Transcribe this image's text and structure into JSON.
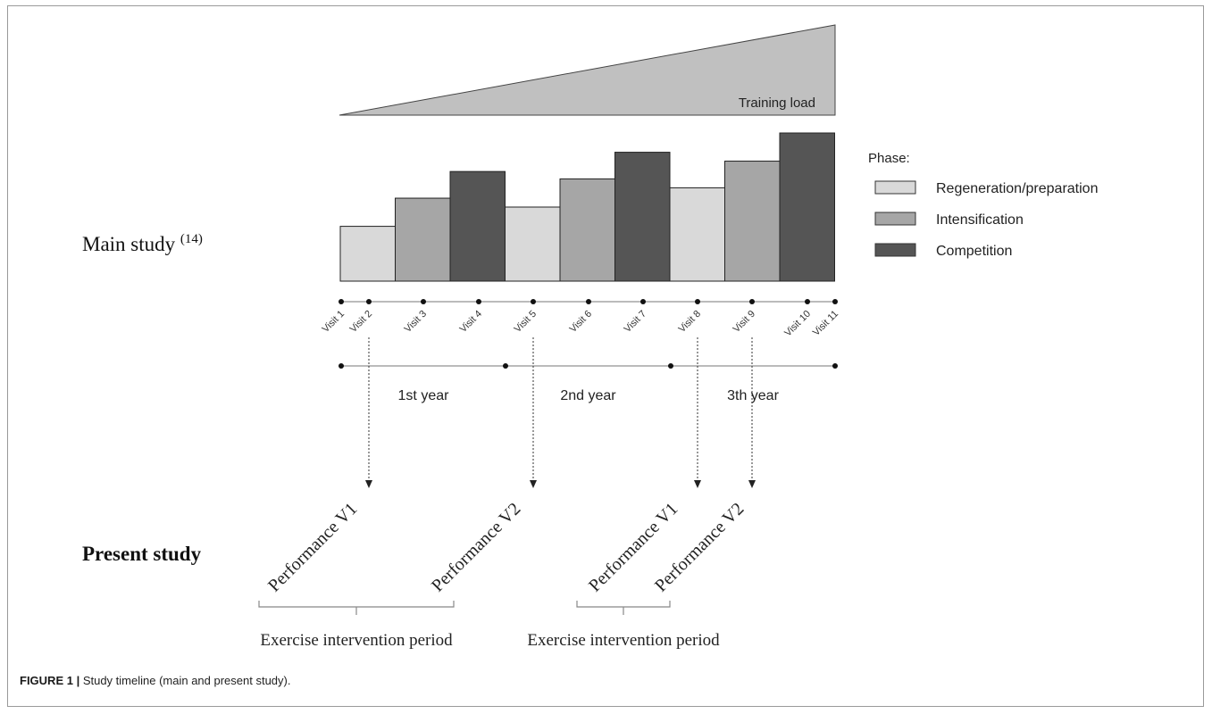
{
  "training_load": {
    "label": "Training load",
    "fill": "#c0c0c0",
    "level_start": 0,
    "level_end": 1
  },
  "main_study": {
    "label": "Main study ",
    "reference": "(14)"
  },
  "phase_legend": {
    "title": "Phase:",
    "items": [
      {
        "key": "regeneration",
        "label": "Regeneration/preparation",
        "color": "#d9d9d9"
      },
      {
        "key": "intensification",
        "label": "Intensification",
        "color": "#a6a6a6"
      },
      {
        "key": "competition",
        "label": "Competition",
        "color": "#555555"
      }
    ]
  },
  "phases": [
    {
      "phase": "regeneration",
      "level": 0.37
    },
    {
      "phase": "intensification",
      "level": 0.56
    },
    {
      "phase": "competition",
      "level": 0.74
    },
    {
      "phase": "regeneration",
      "level": 0.5
    },
    {
      "phase": "intensification",
      "level": 0.69
    },
    {
      "phase": "competition",
      "level": 0.87
    },
    {
      "phase": "regeneration",
      "level": 0.63
    },
    {
      "phase": "intensification",
      "level": 0.81
    },
    {
      "phase": "competition",
      "level": 1.0
    }
  ],
  "visits": [
    "Visit 1",
    "Visit 2",
    "Visit 3",
    "Visit 4",
    "Visit 5",
    "Visit 6",
    "Visit 7",
    "Visit 8",
    "Visit 9",
    "Visit 10",
    "Visit 11"
  ],
  "years": [
    "1st year",
    "2nd year",
    "3th year"
  ],
  "present_study": {
    "label": "Present study",
    "performances": [
      {
        "label": "Performance V1",
        "from_visit": "Visit 2"
      },
      {
        "label": "Performance V2",
        "from_visit": "Visit 5"
      },
      {
        "label": "Performance V1",
        "from_visit": "Visit 8"
      },
      {
        "label": "Performance V2",
        "from_visit": "Visit 9"
      }
    ],
    "intervention_periods": [
      {
        "label": "Exercise intervention period"
      },
      {
        "label": "Exercise intervention period"
      }
    ]
  },
  "caption": {
    "prefix": "FIGURE 1 |",
    "text": " Study timeline (main and present study)."
  }
}
